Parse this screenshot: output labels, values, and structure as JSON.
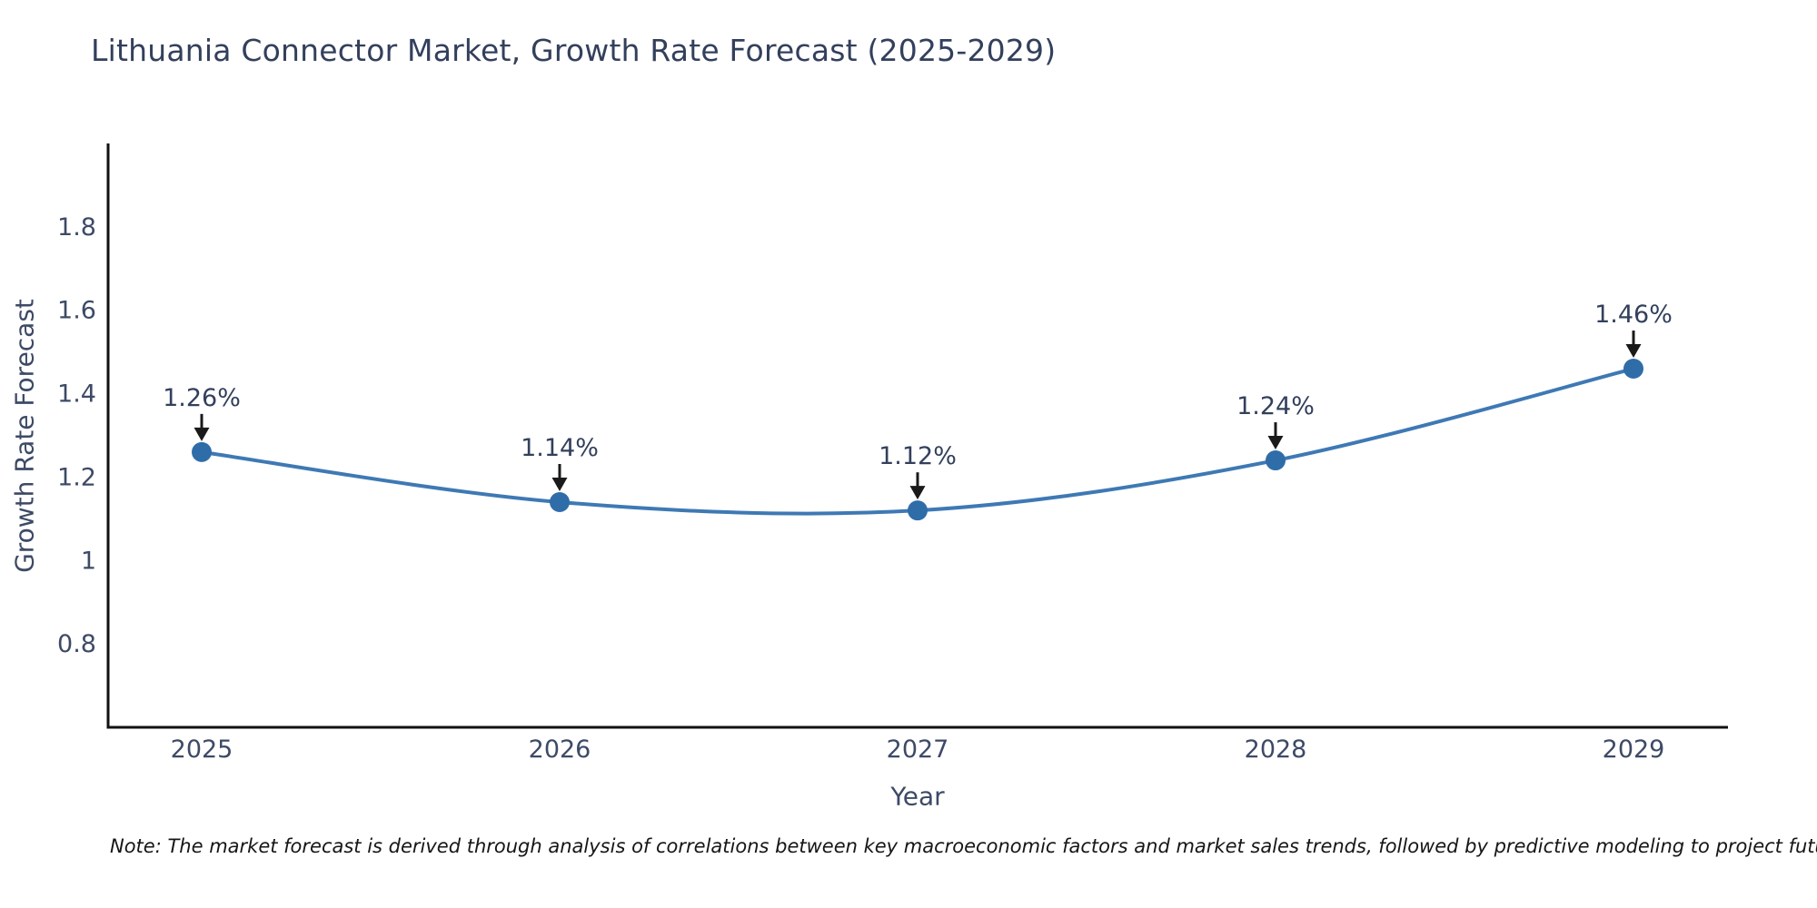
{
  "title": "Lithuania Connector Market, Growth Rate Forecast (2025-2029)",
  "note": "Note: The market forecast is derived through analysis of correlations between key macroeconomic factors and market sales trends, followed by predictive modeling to project future sales",
  "chart_data": {
    "type": "line",
    "title": "Lithuania Connector Market, Growth Rate Forecast (2025-2029)",
    "xlabel": "Year",
    "ylabel": "Growth Rate Forecast",
    "x": [
      2025,
      2026,
      2027,
      2028,
      2029
    ],
    "xtick_labels": [
      "2025",
      "2026",
      "2027",
      "2028",
      "2029"
    ],
    "series": [
      {
        "name": "Growth Rate Forecast",
        "values": [
          1.26,
          1.14,
          1.12,
          1.24,
          1.46
        ]
      }
    ],
    "point_labels": [
      "1.26%",
      "1.14%",
      "1.12%",
      "1.24%",
      "1.46%"
    ],
    "ylim": [
      0.6,
      2.0
    ],
    "yticks": [
      0.8,
      1.0,
      1.2,
      1.4,
      1.6,
      1.8
    ],
    "ytick_labels": [
      "0.8",
      "1",
      "1.2",
      "1.4",
      "1.6",
      "1.8"
    ],
    "grid": false,
    "legend": "none",
    "smooth": true,
    "colors": {
      "line": "#3e79b4",
      "marker": "#2f6da9",
      "axis": "#111111",
      "annotation_arrow": "#1a1a1a"
    }
  }
}
